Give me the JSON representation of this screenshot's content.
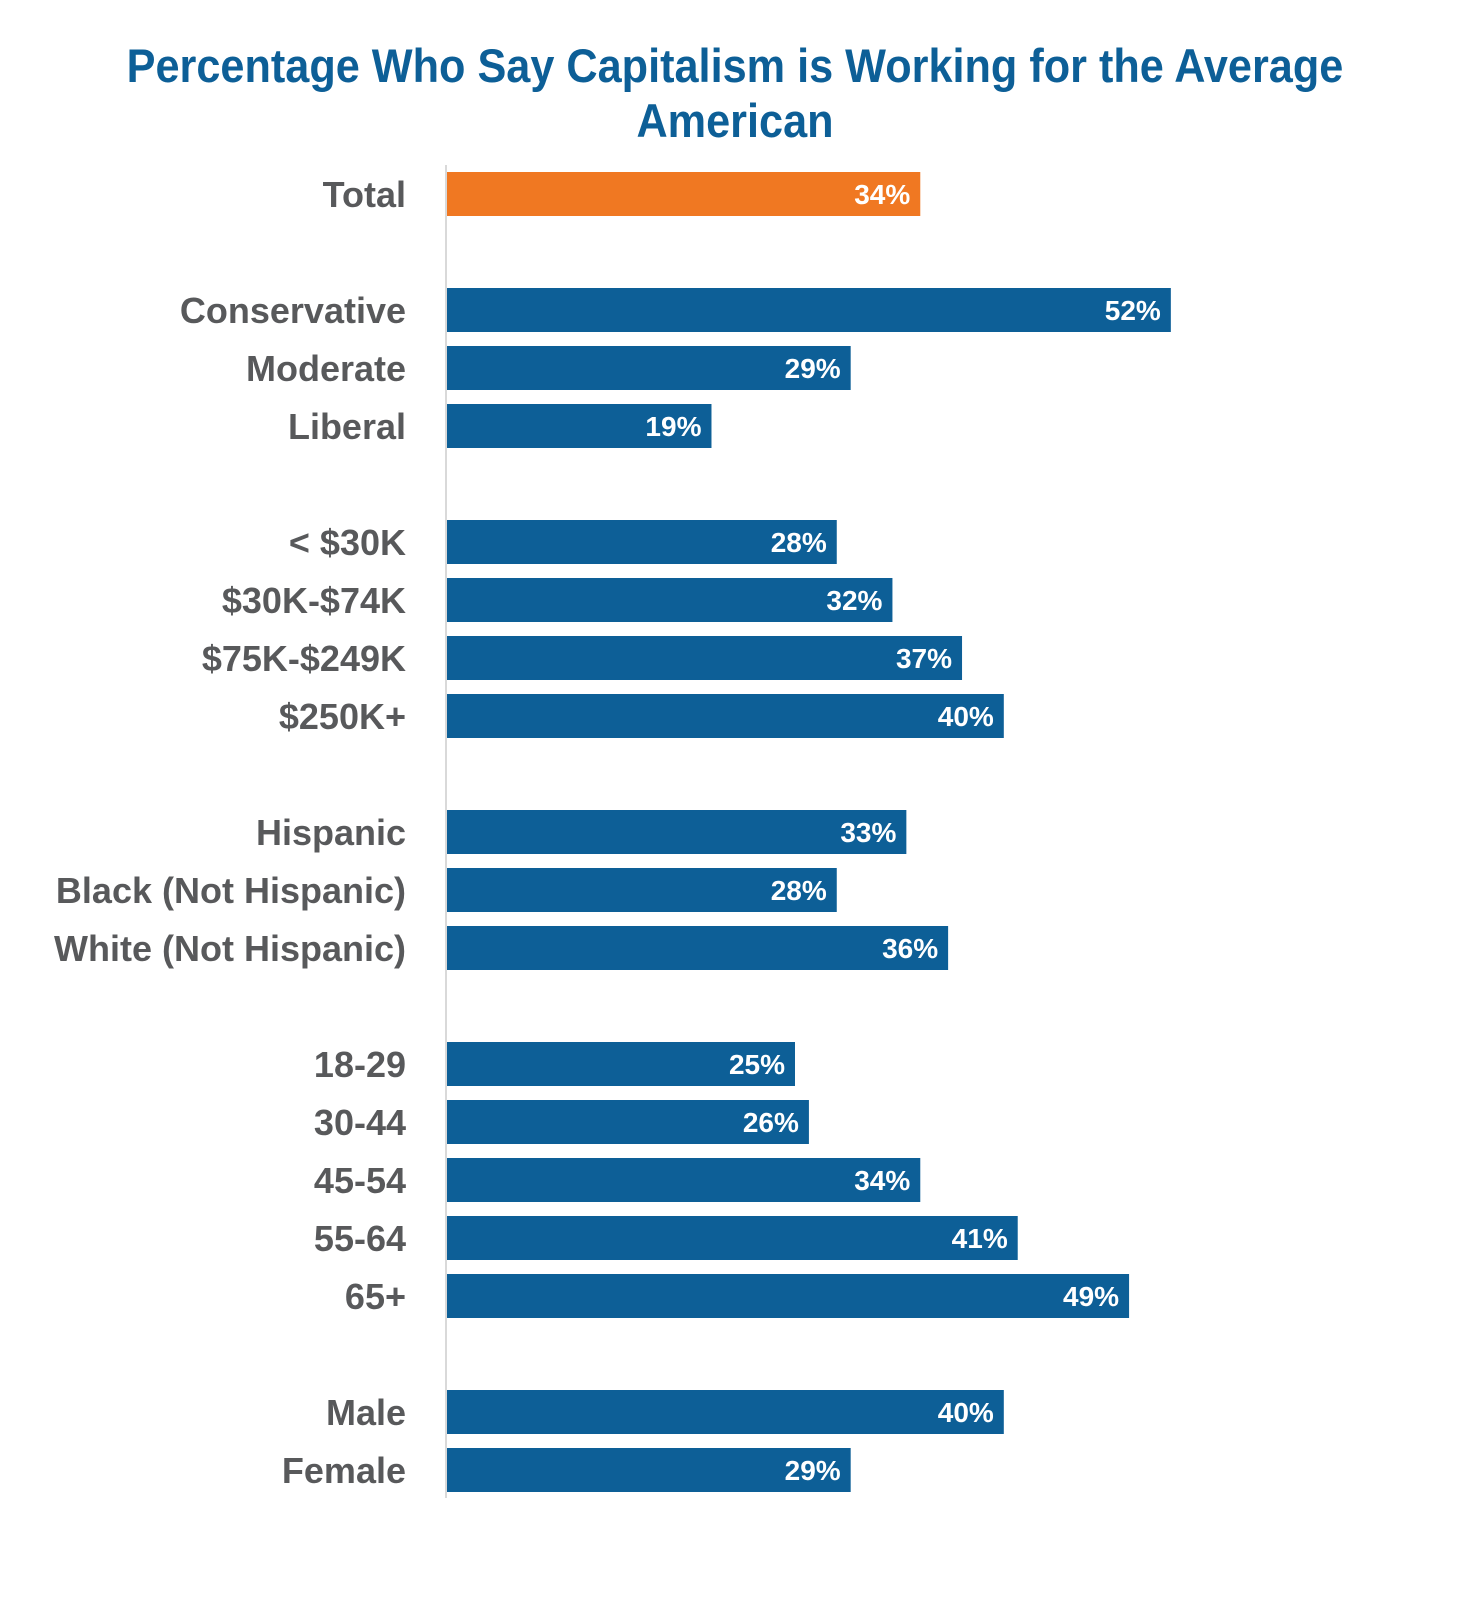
{
  "chart_data": {
    "type": "bar",
    "orientation": "horizontal",
    "title": "Percentage Who Say Capitalism is Working for the Average American",
    "xlabel": "",
    "ylabel": "",
    "xlim": [
      0,
      60
    ],
    "grid": false,
    "legend": "none",
    "colors": {
      "highlight": "#f07822",
      "default": "#0d5f97",
      "title": "#0d5f97",
      "label": "#58595b",
      "axis": "#d9d9d9"
    },
    "groups": [
      {
        "bars": [
          {
            "category": "Total",
            "value": 34,
            "label": "34%",
            "highlight": true
          }
        ]
      },
      {
        "bars": [
          {
            "category": "Conservative",
            "value": 52,
            "label": "52%"
          },
          {
            "category": "Moderate",
            "value": 29,
            "label": "29%"
          },
          {
            "category": "Liberal",
            "value": 19,
            "label": "19%"
          }
        ]
      },
      {
        "bars": [
          {
            "category": "< $30K",
            "value": 28,
            "label": "28%"
          },
          {
            "category": "$30K-$74K",
            "value": 32,
            "label": "32%"
          },
          {
            "category": "$75K-$249K",
            "value": 37,
            "label": "37%"
          },
          {
            "category": "$250K+",
            "value": 40,
            "label": "40%"
          }
        ]
      },
      {
        "bars": [
          {
            "category": "Hispanic",
            "value": 33,
            "label": "33%"
          },
          {
            "category": "Black (Not Hispanic)",
            "value": 28,
            "label": "28%"
          },
          {
            "category": "White (Not Hispanic)",
            "value": 36,
            "label": "36%"
          }
        ]
      },
      {
        "bars": [
          {
            "category": "18-29",
            "value": 25,
            "label": "25%"
          },
          {
            "category": "30-44",
            "value": 26,
            "label": "26%"
          },
          {
            "category": "45-54",
            "value": 34,
            "label": "34%"
          },
          {
            "category": "55-64",
            "value": 41,
            "label": "41%"
          },
          {
            "category": "65+",
            "value": 49,
            "label": "49%"
          }
        ]
      },
      {
        "bars": [
          {
            "category": "Male",
            "value": 40,
            "label": "40%"
          },
          {
            "category": "Female",
            "value": 29,
            "label": "29%"
          }
        ]
      }
    ]
  }
}
